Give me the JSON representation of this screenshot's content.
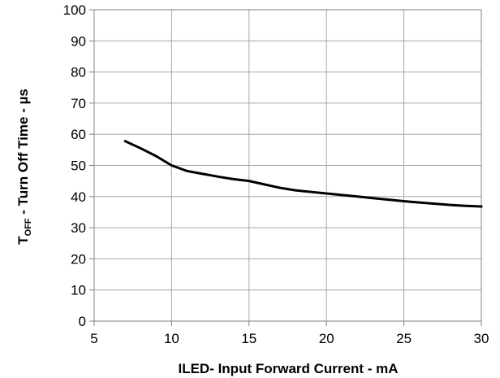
{
  "chart_data": {
    "type": "line",
    "title": "",
    "xlabel": "ILED- Input Forward Current - mA",
    "ylabel": {
      "symbol": "T",
      "subscript": "OFF",
      "rest": " - Turn Off Time - µs"
    },
    "xlim": [
      5,
      30
    ],
    "ylim": [
      0,
      100
    ],
    "x_ticks": [
      5,
      10,
      15,
      20,
      25,
      30
    ],
    "y_ticks": [
      0,
      10,
      20,
      30,
      40,
      50,
      60,
      70,
      80,
      90,
      100
    ],
    "grid": true,
    "legend": "none",
    "series": [
      {
        "color": "#000000",
        "x": [
          7,
          8,
          9,
          10,
          11,
          12,
          13,
          14,
          15,
          16,
          17,
          18,
          19,
          20,
          21,
          22,
          23,
          24,
          25,
          26,
          27,
          28,
          29,
          30
        ],
        "y": [
          57.8,
          55.5,
          53,
          50,
          48.2,
          47.3,
          46.4,
          45.6,
          45.0,
          43.9,
          42.8,
          42.0,
          41.5,
          41.0,
          40.5,
          40.0,
          39.5,
          39.0,
          38.5,
          38.1,
          37.7,
          37.3,
          37.0,
          36.8
        ]
      }
    ]
  }
}
